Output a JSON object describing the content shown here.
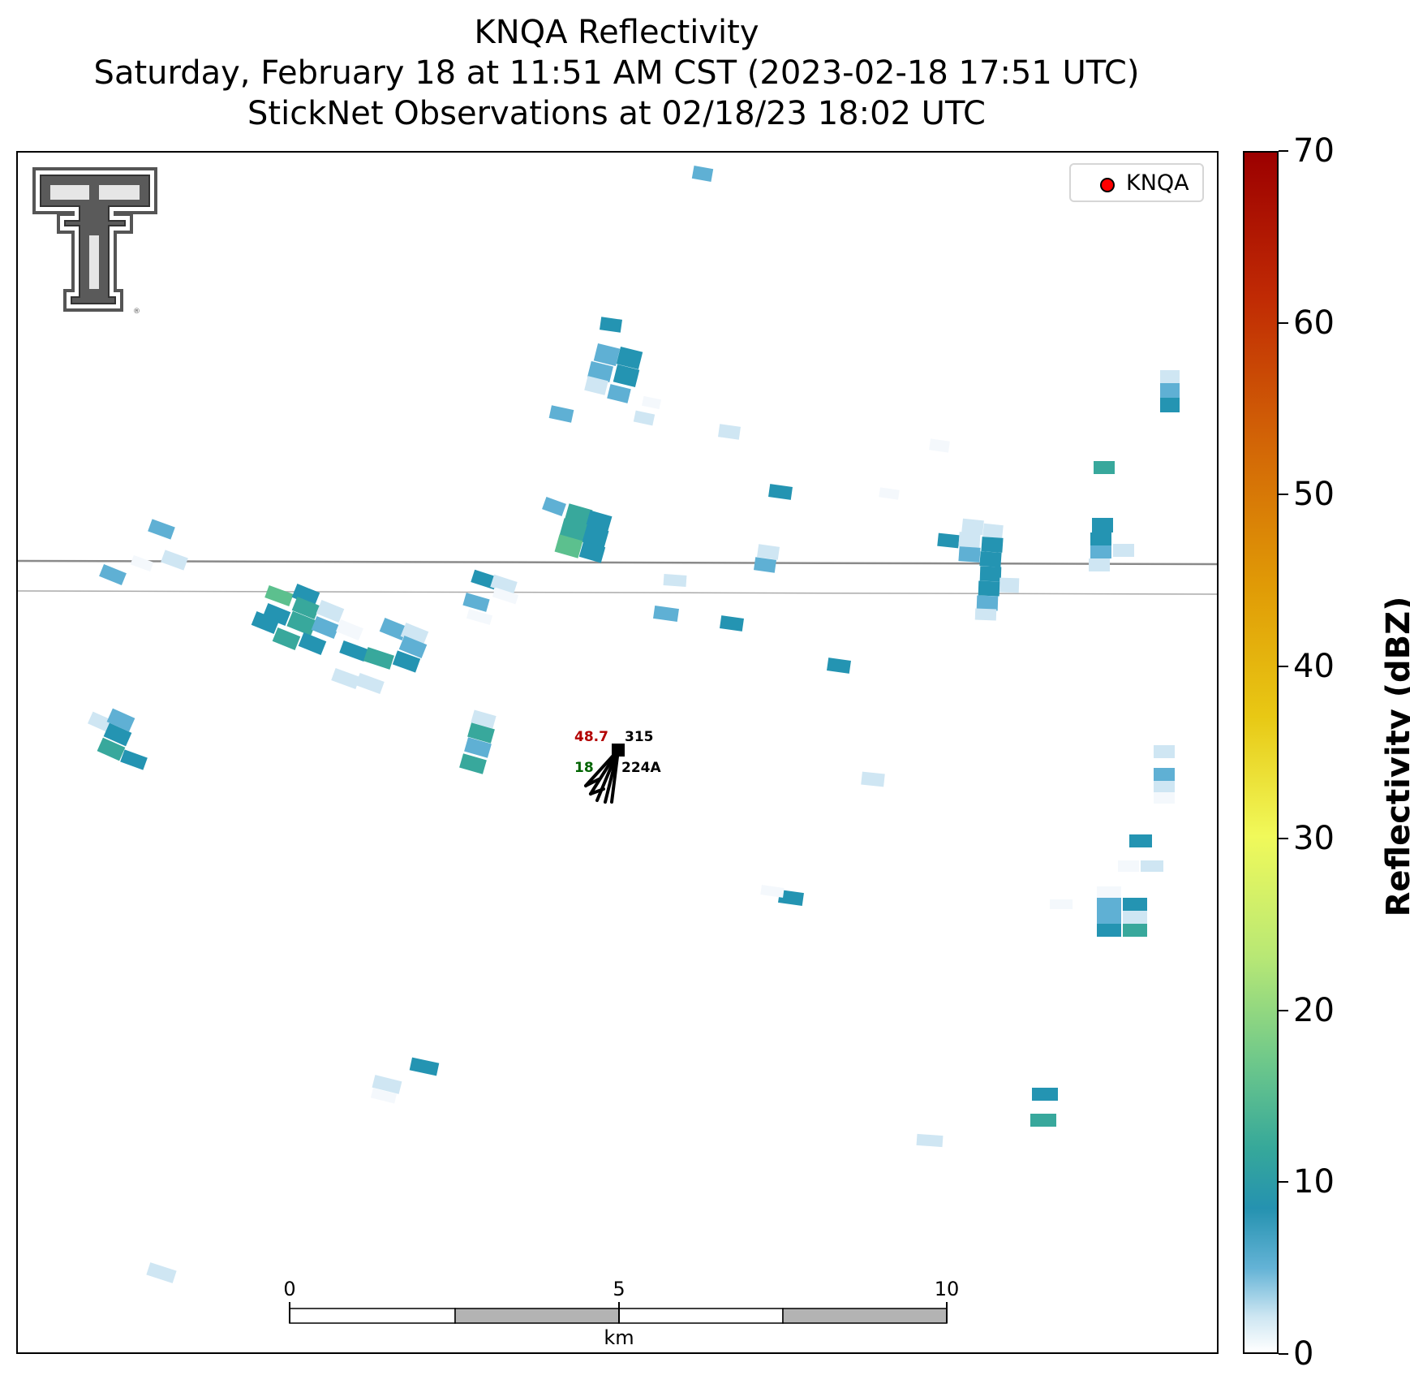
{
  "title": {
    "line1": "KNQA Reflectivity",
    "line2": "Saturday, February 18 at 11:51 AM CST (2023-02-18 17:51 UTC)",
    "line3": "StickNet Observations at 02/18/23 18:02 UTC"
  },
  "legend": {
    "label": "KNQA",
    "marker_color": "#ff0000"
  },
  "colorbar": {
    "label": "Reflectivity (dBZ)",
    "ticks": [
      "0",
      "10",
      "20",
      "30",
      "40",
      "50",
      "60",
      "70"
    ],
    "range": [
      0,
      70
    ]
  },
  "station": {
    "value_red": "48.7",
    "value_green": "18",
    "value_black": "315",
    "id": "224A"
  },
  "scale_bar": {
    "ticks": [
      "0",
      "5",
      "10"
    ],
    "unit": "km"
  },
  "colors": {
    "dbz_0": "#f4f8fc",
    "dbz_3": "#cfe6f3",
    "dbz_5": "#5fb0d4",
    "dbz_8": "#2494b2",
    "dbz_11": "#38a89c",
    "dbz_14": "#5cc08e",
    "road": "#8a8a8a",
    "logo": "#555555"
  }
}
